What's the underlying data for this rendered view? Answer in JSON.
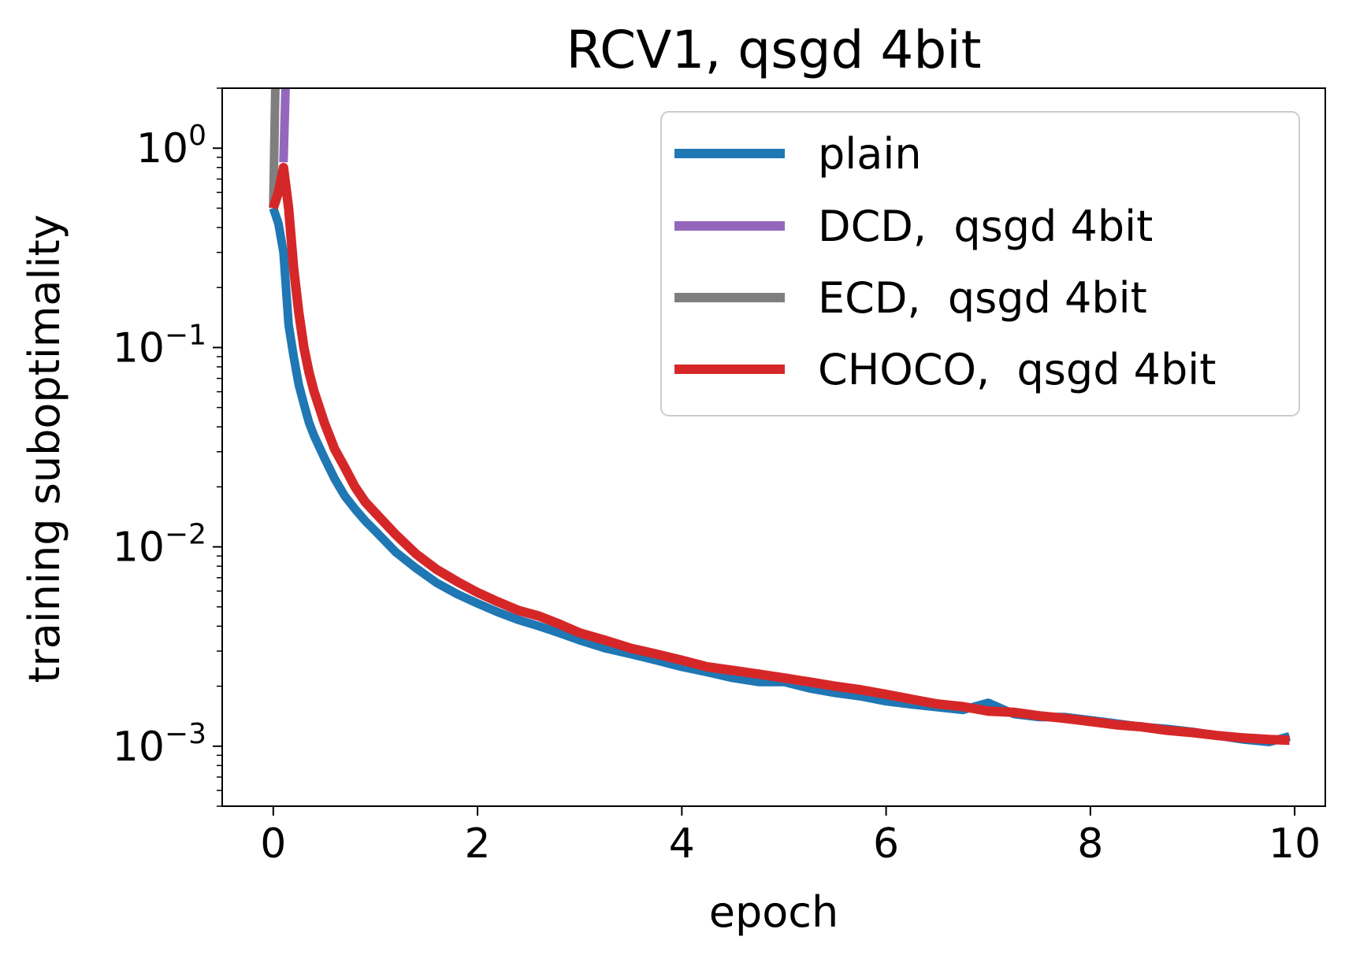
{
  "chart_data": {
    "type": "line",
    "title": "RCV1, qsgd 4bit",
    "xlabel": "epoch",
    "ylabel": "training suboptimality",
    "xlim": [
      -0.5,
      10.3
    ],
    "ylim": [
      0.0005,
      2.0
    ],
    "yscale": "log",
    "x_ticks": [
      0,
      2,
      4,
      6,
      8,
      10
    ],
    "x_tick_labels": [
      "0",
      "2",
      "4",
      "6",
      "8",
      "10"
    ],
    "y_ticks": [
      {
        "value": 1,
        "base": "10",
        "exp": "0"
      },
      {
        "value": 0.1,
        "base": "10",
        "exp": "−1"
      },
      {
        "value": 0.01,
        "base": "10",
        "exp": "−2"
      },
      {
        "value": 0.001,
        "base": "10",
        "exp": "−3"
      }
    ],
    "legend": {
      "location": "top-right",
      "entries": [
        {
          "label": "plain",
          "color": "#1f77b4"
        },
        {
          "label": "DCD,  qsgd 4bit",
          "color": "#9467bd"
        },
        {
          "label": "ECD,  qsgd 4bit",
          "color": "#7f7f7f"
        },
        {
          "label": "CHOCO,  qsgd 4bit",
          "color": "#d62728"
        }
      ]
    },
    "series": [
      {
        "name": "plain",
        "color": "#1f77b4",
        "x": [
          0,
          0.05,
          0.1,
          0.15,
          0.2,
          0.25,
          0.3,
          0.35,
          0.4,
          0.5,
          0.6,
          0.7,
          0.8,
          0.9,
          1.0,
          1.2,
          1.4,
          1.6,
          1.8,
          2.0,
          2.2,
          2.4,
          2.6,
          2.8,
          3.0,
          3.25,
          3.5,
          3.75,
          4.0,
          4.25,
          4.5,
          4.75,
          5.0,
          5.25,
          5.5,
          5.75,
          6.0,
          6.25,
          6.5,
          6.75,
          7.0,
          7.25,
          7.5,
          7.75,
          8.0,
          8.25,
          8.5,
          8.75,
          9.0,
          9.25,
          9.5,
          9.75,
          9.95
        ],
        "y": [
          0.5,
          0.42,
          0.3,
          0.13,
          0.09,
          0.065,
          0.052,
          0.042,
          0.036,
          0.028,
          0.022,
          0.018,
          0.0155,
          0.0135,
          0.012,
          0.0094,
          0.0078,
          0.0066,
          0.0058,
          0.0052,
          0.0047,
          0.0043,
          0.004,
          0.0037,
          0.0034,
          0.0031,
          0.0029,
          0.0027,
          0.0025,
          0.00235,
          0.0022,
          0.0021,
          0.0021,
          0.00195,
          0.00185,
          0.00178,
          0.00168,
          0.00162,
          0.00157,
          0.00152,
          0.00165,
          0.00145,
          0.0014,
          0.0014,
          0.00135,
          0.0013,
          0.00125,
          0.00122,
          0.00118,
          0.00113,
          0.00108,
          0.00105,
          0.00112
        ]
      },
      {
        "name": "DCD,  qsgd 4bit",
        "color": "#9467bd",
        "x": [
          0.1,
          0.12
        ],
        "y": [
          0.85,
          2.0
        ]
      },
      {
        "name": "ECD,  qsgd 4bit",
        "color": "#7f7f7f",
        "x": [
          0,
          0.02
        ],
        "y": [
          0.5,
          2.0
        ]
      },
      {
        "name": "CHOCO,  qsgd 4bit",
        "color": "#d62728",
        "x": [
          0,
          0.05,
          0.1,
          0.15,
          0.2,
          0.25,
          0.3,
          0.35,
          0.4,
          0.5,
          0.6,
          0.7,
          0.8,
          0.9,
          1.0,
          1.2,
          1.4,
          1.6,
          1.8,
          2.0,
          2.2,
          2.4,
          2.6,
          2.8,
          3.0,
          3.25,
          3.5,
          3.75,
          4.0,
          4.25,
          4.5,
          4.75,
          5.0,
          5.25,
          5.5,
          5.75,
          6.0,
          6.25,
          6.5,
          6.75,
          7.0,
          7.25,
          7.5,
          7.75,
          8.0,
          8.25,
          8.5,
          8.75,
          9.0,
          9.25,
          9.5,
          9.75,
          9.95
        ],
        "y": [
          0.5,
          0.6,
          0.8,
          0.5,
          0.25,
          0.15,
          0.1,
          0.075,
          0.06,
          0.042,
          0.031,
          0.025,
          0.02,
          0.0168,
          0.0148,
          0.0115,
          0.0092,
          0.0077,
          0.0067,
          0.0059,
          0.0053,
          0.0048,
          0.0045,
          0.0041,
          0.0037,
          0.0034,
          0.0031,
          0.0029,
          0.0027,
          0.0025,
          0.0024,
          0.0023,
          0.0022,
          0.0021,
          0.002,
          0.00192,
          0.00182,
          0.00172,
          0.00163,
          0.00158,
          0.0015,
          0.00148,
          0.00142,
          0.00138,
          0.00133,
          0.00128,
          0.00125,
          0.0012,
          0.00117,
          0.00113,
          0.0011,
          0.00108,
          0.00107
        ]
      }
    ]
  }
}
